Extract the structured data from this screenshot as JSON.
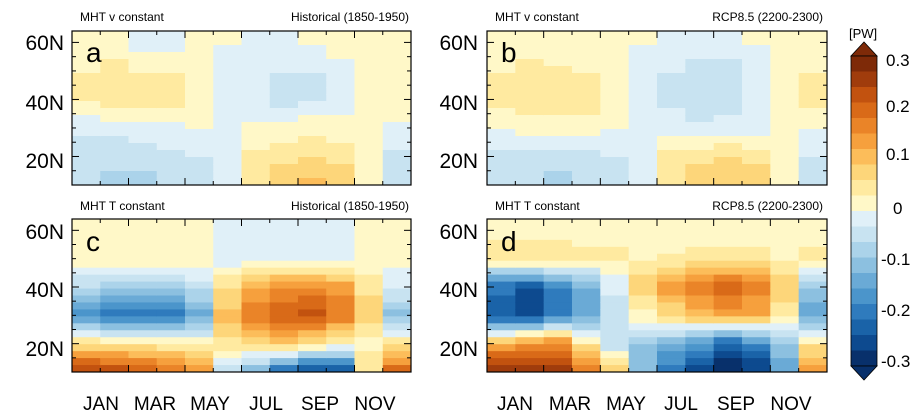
{
  "colorbar": {
    "unit": "[PW]",
    "ticks": [
      0.3,
      0.2,
      0.1,
      0,
      -0.1,
      -0.2,
      -0.3
    ],
    "tick_labels": [
      "0.3",
      "0.2",
      "0.1",
      "0",
      "-0.1",
      "-0.2",
      "-0.3"
    ],
    "colors": [
      "#08306b",
      "#0d4a8f",
      "#1a63a8",
      "#2f7bbd",
      "#4b95cb",
      "#6aaad6",
      "#8cc0e0",
      "#abd3ea",
      "#c8e3f1",
      "#e0f0f8",
      "#fff8c8",
      "#ffeaa0",
      "#fdd67a",
      "#fcbd5a",
      "#f6a03d",
      "#ea8428",
      "#d96a18",
      "#c2520f",
      "#a03c0c",
      "#7e2a08"
    ]
  },
  "chart_data": [
    {
      "type": "heatmap",
      "panel": "a",
      "title_left": "MHT v constant",
      "title_right": "Historical (1850-1950)",
      "xlabel_ticks": [
        "JAN",
        "MAR",
        "MAY",
        "JUL",
        "SEP",
        "NOV"
      ],
      "ylabel_ticks": [
        "20N",
        "40N",
        "60N"
      ],
      "x": [
        "JAN",
        "FEB",
        "MAR",
        "APR",
        "MAY",
        "JUN",
        "JUL",
        "AUG",
        "SEP",
        "OCT",
        "NOV",
        "DEC"
      ],
      "y_lat": [
        10,
        20,
        30,
        40,
        50,
        60
      ],
      "values": [
        [
          -0.06,
          -0.07,
          -0.07,
          -0.06,
          -0.04,
          -0.01,
          0.06,
          0.08,
          0.1,
          0.09,
          0.02,
          -0.05
        ],
        [
          -0.05,
          -0.05,
          -0.05,
          -0.04,
          -0.03,
          -0.01,
          0.04,
          0.05,
          0.06,
          0.05,
          0.01,
          -0.04
        ],
        [
          -0.02,
          -0.02,
          -0.01,
          -0.01,
          0.0,
          0.0,
          0.01,
          0.01,
          0.02,
          0.01,
          0.0,
          -0.01
        ],
        [
          0.04,
          0.05,
          0.05,
          0.05,
          0.03,
          -0.01,
          -0.03,
          -0.05,
          -0.04,
          -0.02,
          0.02,
          0.03
        ],
        [
          0.03,
          0.04,
          0.03,
          0.03,
          0.02,
          -0.01,
          -0.02,
          -0.03,
          -0.03,
          -0.01,
          0.02,
          0.03
        ],
        [
          0.01,
          0.01,
          -0.01,
          -0.02,
          0.02,
          0.0,
          -0.01,
          -0.01,
          0.0,
          0.01,
          0.01,
          0.01
        ]
      ]
    },
    {
      "type": "heatmap",
      "panel": "b",
      "title_left": "MHT v constant",
      "title_right": "RCP8.5 (2200-2300)",
      "xlabel_ticks": [
        "JAN",
        "MAR",
        "MAY",
        "JUL",
        "SEP",
        "NOV"
      ],
      "ylabel_ticks": [
        "20N",
        "40N",
        "60N"
      ],
      "x": [
        "JAN",
        "FEB",
        "MAR",
        "APR",
        "MAY",
        "JUN",
        "JUL",
        "AUG",
        "SEP",
        "OCT",
        "NOV",
        "DEC"
      ],
      "y_lat": [
        10,
        20,
        30,
        40,
        50,
        60
      ],
      "values": [
        [
          -0.05,
          -0.06,
          -0.07,
          -0.06,
          -0.04,
          -0.01,
          0.06,
          0.08,
          0.09,
          0.08,
          0.03,
          -0.04
        ],
        [
          -0.04,
          -0.05,
          -0.05,
          -0.04,
          -0.03,
          -0.01,
          0.04,
          0.05,
          0.06,
          0.05,
          0.02,
          -0.03
        ],
        [
          0.0,
          0.01,
          0.01,
          0.01,
          0.0,
          -0.01,
          -0.01,
          -0.02,
          -0.02,
          -0.01,
          0.0,
          0.0
        ],
        [
          0.05,
          0.06,
          0.06,
          0.05,
          0.03,
          -0.02,
          -0.04,
          -0.06,
          -0.05,
          -0.03,
          0.02,
          0.04
        ],
        [
          0.03,
          0.04,
          0.04,
          0.03,
          0.02,
          -0.01,
          -0.03,
          -0.04,
          -0.04,
          -0.02,
          0.02,
          0.03
        ],
        [
          0.01,
          0.01,
          0.0,
          0.0,
          0.01,
          0.0,
          -0.01,
          -0.01,
          -0.01,
          0.0,
          0.01,
          0.01
        ]
      ]
    },
    {
      "type": "heatmap",
      "panel": "c",
      "title_left": "MHT T constant",
      "title_right": "Historical (1850-1950)",
      "xlabel_ticks": [
        "JAN",
        "MAR",
        "MAY",
        "JUL",
        "SEP",
        "NOV"
      ],
      "ylabel_ticks": [
        "20N",
        "40N",
        "60N"
      ],
      "x": [
        "JAN",
        "FEB",
        "MAR",
        "APR",
        "MAY",
        "JUN",
        "JUL",
        "AUG",
        "SEP",
        "OCT",
        "NOV",
        "DEC"
      ],
      "y_lat": [
        10,
        20,
        30,
        40,
        50,
        60
      ],
      "values": [
        [
          0.25,
          0.24,
          0.22,
          0.2,
          0.16,
          -0.05,
          -0.12,
          -0.22,
          -0.27,
          -0.27,
          0.05,
          0.2
        ],
        [
          0.06,
          0.05,
          0.04,
          0.03,
          0.02,
          0.05,
          0.06,
          0.09,
          0.05,
          0.03,
          0.02,
          0.05
        ],
        [
          -0.18,
          -0.2,
          -0.22,
          -0.2,
          -0.14,
          0.1,
          0.18,
          0.2,
          0.22,
          0.18,
          0.08,
          -0.1
        ],
        [
          -0.06,
          -0.07,
          -0.08,
          -0.08,
          -0.05,
          0.06,
          0.12,
          0.15,
          0.16,
          0.14,
          0.05,
          -0.03
        ],
        [
          0.02,
          0.02,
          0.02,
          0.02,
          0.02,
          -0.02,
          -0.02,
          -0.02,
          -0.02,
          -0.02,
          0.01,
          0.02
        ],
        [
          0.03,
          0.03,
          0.03,
          0.03,
          0.02,
          -0.01,
          -0.02,
          -0.02,
          -0.02,
          -0.01,
          0.02,
          0.03
        ]
      ]
    },
    {
      "type": "heatmap",
      "panel": "d",
      "title_left": "MHT T constant",
      "title_right": "RCP8.5 (2200-2300)",
      "xlabel_ticks": [
        "JAN",
        "MAR",
        "MAY",
        "JUL",
        "SEP",
        "NOV"
      ],
      "ylabel_ticks": [
        "20N",
        "40N",
        "60N"
      ],
      "x": [
        "JAN",
        "FEB",
        "MAR",
        "APR",
        "MAY",
        "JUN",
        "JUL",
        "AUG",
        "SEP",
        "OCT",
        "NOV",
        "DEC"
      ],
      "y_lat": [
        10,
        20,
        30,
        40,
        50,
        60
      ],
      "values": [
        [
          0.28,
          0.28,
          0.26,
          0.18,
          0.08,
          -0.1,
          -0.2,
          -0.26,
          -0.3,
          -0.28,
          -0.15,
          0.15
        ],
        [
          0.12,
          0.15,
          0.16,
          0.05,
          -0.05,
          -0.1,
          -0.12,
          -0.15,
          -0.22,
          -0.18,
          -0.1,
          0.05
        ],
        [
          -0.24,
          -0.26,
          -0.2,
          -0.15,
          -0.05,
          0.02,
          0.06,
          0.1,
          0.14,
          0.12,
          0.05,
          -0.15
        ],
        [
          -0.2,
          -0.24,
          -0.18,
          -0.12,
          -0.02,
          0.08,
          0.14,
          0.18,
          0.2,
          0.16,
          0.08,
          -0.08
        ],
        [
          0.05,
          0.06,
          0.06,
          0.04,
          0.04,
          0.03,
          0.04,
          0.05,
          0.05,
          0.04,
          0.03,
          0.04
        ],
        [
          0.02,
          0.02,
          0.02,
          0.02,
          0.02,
          0.01,
          0.0,
          0.0,
          0.01,
          0.01,
          0.02,
          0.02
        ]
      ]
    }
  ]
}
